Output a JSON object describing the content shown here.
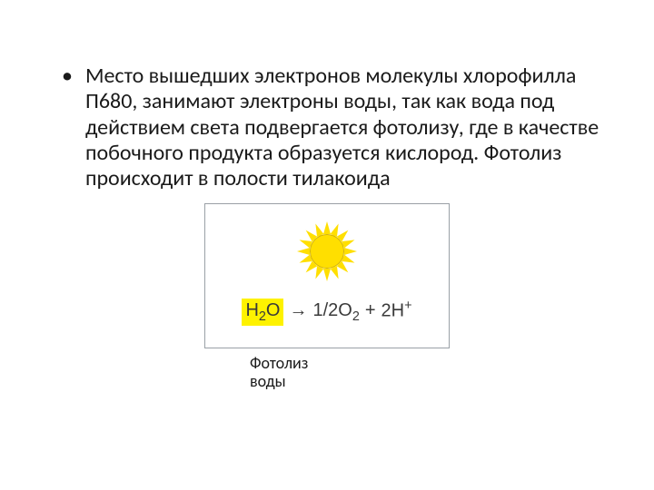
{
  "slide": {
    "bullet_glyph": "•",
    "paragraph": "Место вышедших электронов молекулы хлорофилла П680, занимают электроны воды, так как вода под действием света подвергается фотолизу, где в качестве побочного продукта образуется кислород. Фотолиз происходит в полости тилакоида"
  },
  "diagram": {
    "border_color": "#9aa0a6",
    "background": "#ffffff",
    "sun": {
      "fill": "#ffdf00",
      "stroke": "#d4b300",
      "ray_count": 16
    },
    "equation": {
      "h2o_text": "H",
      "h2o_sub": "2",
      "h2o_after": "O",
      "h2o_highlight": "#fef200",
      "arrow": "→",
      "rhs_1": "1/2O",
      "rhs_1_sub": "2",
      "plus": "+",
      "rhs_2": "2H",
      "rhs_2_sup": "+"
    },
    "caption_line1": "Фотолиз",
    "caption_line2": "воды"
  },
  "style": {
    "text_color": "#1a1a1a",
    "body_fontsize_pt": 18,
    "caption_fontsize_pt": 13
  }
}
